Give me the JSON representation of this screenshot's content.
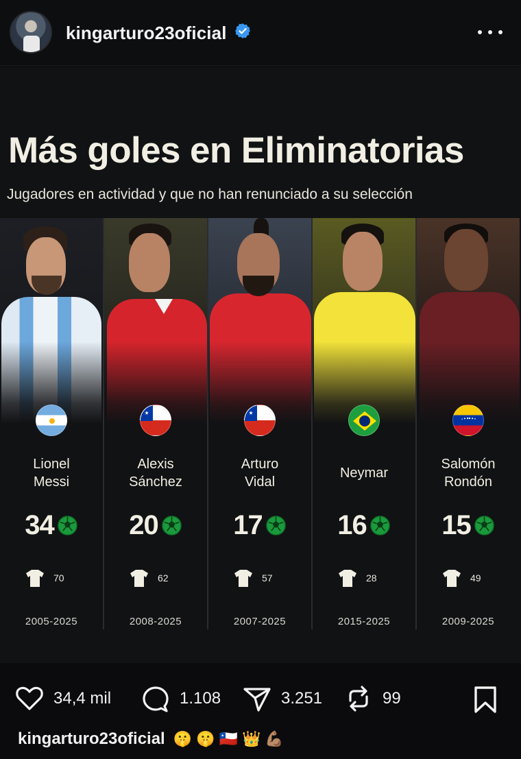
{
  "post": {
    "username": "kingarturo23oficial"
  },
  "graphic": {
    "title": "Más goles en Eliminatorias",
    "subtitle": "Jugadores en actividad y que no han renunciado a su selección",
    "players": [
      {
        "name_line1": "Lionel",
        "name_line2": "Messi",
        "country": "argentina",
        "goals": "34",
        "caps": "70",
        "years": "2005-2025"
      },
      {
        "name_line1": "Alexis",
        "name_line2": "Sánchez",
        "country": "chile",
        "goals": "20",
        "caps": "62",
        "years": "2008-2025"
      },
      {
        "name_line1": "Arturo",
        "name_line2": "Vidal",
        "country": "chile",
        "goals": "17",
        "caps": "57",
        "years": "2007-2025"
      },
      {
        "name_line1": "Neymar",
        "name_line2": "",
        "country": "brazil",
        "goals": "16",
        "caps": "28",
        "years": "2015-2025"
      },
      {
        "name_line1": "Salomón",
        "name_line2": "Rondón",
        "country": "venezuela",
        "goals": "15",
        "caps": "49",
        "years": "2009-2025"
      }
    ]
  },
  "actions": {
    "likes": "34,4 mil",
    "comments": "1.108",
    "shares": "3.251",
    "reposts": "99"
  },
  "caption": {
    "username": "kingarturo23oficial",
    "emojis": [
      "🤫",
      "🤫",
      "🇨🇱",
      "👑",
      "💪🏽"
    ]
  },
  "colors": {
    "background": "#0b0b0d",
    "graphic_background": "#111214",
    "title_text": "#f1eee3",
    "ball_green": "#1a9a3c",
    "verified_blue": "#3897f0"
  },
  "icons": [
    "verified-badge-icon",
    "more-options-icon",
    "soccer-ball-icon",
    "shirt-icon",
    "heart-icon",
    "comment-icon",
    "send-icon",
    "repost-icon",
    "bookmark-icon"
  ]
}
